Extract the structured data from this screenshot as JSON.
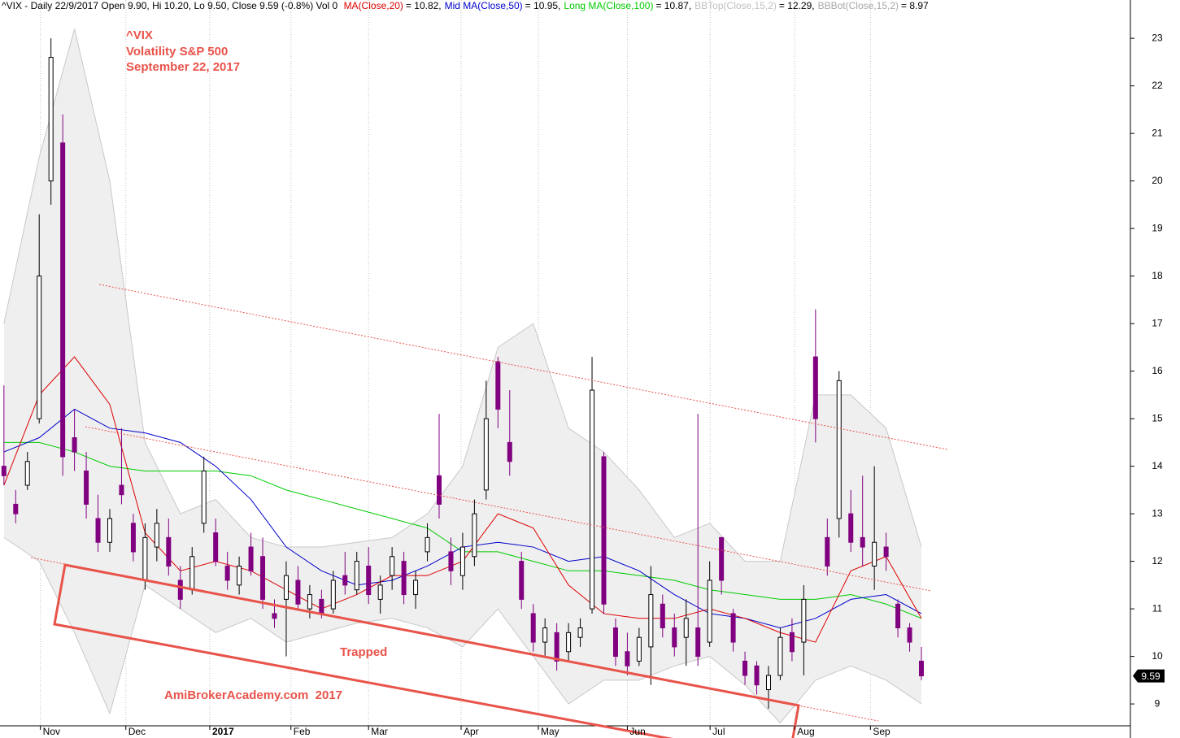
{
  "chart_data": {
    "type": "candlestick",
    "header": {
      "prefix": "^VIX - Daily 22/9/2017 Open 9.90, Hi 10.20, Lo 9.50, Close 9.59 (-0.8%) Vol 0",
      "line_values": [
        "= 10.82,",
        "= 10.95,",
        "= 10.87,",
        "= 12.29,",
        "= 8.97"
      ]
    },
    "title_lines": [
      "^VIX",
      "Volatility S&P 500",
      "September 22, 2017"
    ],
    "annotations": [
      "Trapped",
      "AmiBrokerAcademy.com  2017"
    ],
    "up_color": "#ffffff",
    "down_color": "#800080",
    "grid": true,
    "x": [
      0,
      3,
      6,
      9,
      12,
      15,
      18,
      21,
      24,
      27,
      30,
      33,
      36,
      39,
      42,
      45,
      48,
      51,
      54,
      57,
      60,
      63,
      66,
      69,
      72,
      75,
      78,
      81,
      84,
      87,
      90,
      93,
      96,
      99,
      102,
      105,
      108,
      111,
      114,
      117,
      120,
      123,
      126,
      129,
      132,
      135,
      138,
      141,
      144,
      147,
      150,
      153,
      156,
      159,
      162,
      165,
      168,
      171,
      174,
      177,
      180,
      183,
      186,
      189,
      192,
      195,
      198,
      201,
      204,
      207,
      210,
      213,
      216,
      219,
      222,
      225,
      228,
      231,
      234
    ],
    "open": [
      14.0,
      13.2,
      13.6,
      15.0,
      20.0,
      20.8,
      14.6,
      13.9,
      12.9,
      12.4,
      13.6,
      12.8,
      11.6,
      12.3,
      12.5,
      11.6,
      11.4,
      12.8,
      12.6,
      11.9,
      11.5,
      12.3,
      12.1,
      10.9,
      11.2,
      11.6,
      11.0,
      11.2,
      11.0,
      11.7,
      11.4,
      11.9,
      11.2,
      11.7,
      12.0,
      11.3,
      12.2,
      13.8,
      12.2,
      11.7,
      12.1,
      13.5,
      16.2,
      14.5,
      12.0,
      10.9,
      10.3,
      10.5,
      10.1,
      10.4,
      11.0,
      14.2,
      10.6,
      10.1,
      9.9,
      10.2,
      11.1,
      10.6,
      10.4,
      10.6,
      10.3,
      12.5,
      10.9,
      9.9,
      9.8,
      9.3,
      9.6,
      10.5,
      10.3,
      16.3,
      12.5,
      12.9,
      13.0,
      12.5,
      11.9,
      12.3,
      11.1,
      10.6,
      9.9
    ],
    "high": [
      15.7,
      13.5,
      14.3,
      19.3,
      23.0,
      21.4,
      15.2,
      14.3,
      13.4,
      13.1,
      14.8,
      13.0,
      12.8,
      13.1,
      12.9,
      11.9,
      12.3,
      14.2,
      12.9,
      12.2,
      12.1,
      12.6,
      12.5,
      11.2,
      12.0,
      11.9,
      11.5,
      11.4,
      11.8,
      12.2,
      12.2,
      12.3,
      11.7,
      12.3,
      12.2,
      11.8,
      12.8,
      15.1,
      12.5,
      12.6,
      13.3,
      15.8,
      16.3,
      15.6,
      12.2,
      11.1,
      10.8,
      10.7,
      10.7,
      10.8,
      16.3,
      14.3,
      10.8,
      10.5,
      10.6,
      11.9,
      11.3,
      10.9,
      11.2,
      15.1,
      12.0,
      12.5,
      11.0,
      10.1,
      9.9,
      9.8,
      10.6,
      10.8,
      11.5,
      17.3,
      12.9,
      16.0,
      13.5,
      13.8,
      14.0,
      12.6,
      11.2,
      10.7,
      10.2
    ],
    "low": [
      13.6,
      12.8,
      13.5,
      14.9,
      19.5,
      13.8,
      13.9,
      12.9,
      12.2,
      12.2,
      13.2,
      12.0,
      11.4,
      12.0,
      11.7,
      11.0,
      11.3,
      12.6,
      11.9,
      11.4,
      11.3,
      11.7,
      11.0,
      10.6,
      10.0,
      11.0,
      10.8,
      10.8,
      10.9,
      11.3,
      11.3,
      11.1,
      10.9,
      11.4,
      11.1,
      11.0,
      12.0,
      12.9,
      11.5,
      11.4,
      11.9,
      13.3,
      14.8,
      13.8,
      11.0,
      10.1,
      10.0,
      9.7,
      9.9,
      10.2,
      10.9,
      10.9,
      9.8,
      9.6,
      9.8,
      9.4,
      10.4,
      10.0,
      9.8,
      9.8,
      10.2,
      11.3,
      10.1,
      9.4,
      9.2,
      8.9,
      9.5,
      9.9,
      9.6,
      14.5,
      11.7,
      12.5,
      12.2,
      11.9,
      11.4,
      11.8,
      10.4,
      10.1,
      9.5
    ],
    "close": [
      13.8,
      13.0,
      14.1,
      18.0,
      22.6,
      14.2,
      14.3,
      13.2,
      12.4,
      12.9,
      13.4,
      12.2,
      12.5,
      12.8,
      11.9,
      11.2,
      12.1,
      13.9,
      12.0,
      11.6,
      11.9,
      11.8,
      11.2,
      10.8,
      11.7,
      11.1,
      11.3,
      10.9,
      11.6,
      11.5,
      12.0,
      11.3,
      11.5,
      12.1,
      11.3,
      11.6,
      12.5,
      13.2,
      11.8,
      12.3,
      13.0,
      15.0,
      15.2,
      14.1,
      11.2,
      10.3,
      10.6,
      9.9,
      10.5,
      10.6,
      15.6,
      11.1,
      10.0,
      9.8,
      10.4,
      11.3,
      10.6,
      10.2,
      10.8,
      10.0,
      11.6,
      11.6,
      10.3,
      9.6,
      9.4,
      9.6,
      10.4,
      10.1,
      11.2,
      15.0,
      11.9,
      15.8,
      12.4,
      12.3,
      12.4,
      12.1,
      10.6,
      10.3,
      9.59
    ],
    "lines": [
      {
        "name": "BBTop(Close,15,2)",
        "color": "#c8c8c8",
        "x": [
          0,
          9,
          18,
          27,
          36,
          45,
          54,
          63,
          72,
          81,
          90,
          99,
          108,
          117,
          126,
          135,
          144,
          153,
          162,
          171,
          180,
          189,
          198,
          207,
          216,
          225,
          234
        ],
        "values": [
          17.0,
          20.5,
          23.2,
          20.0,
          14.5,
          13.0,
          13.3,
          12.5,
          12.3,
          12.3,
          12.4,
          12.5,
          13.0,
          14.0,
          16.5,
          17.0,
          14.8,
          14.3,
          13.5,
          12.5,
          12.8,
          12.0,
          12.0,
          15.5,
          15.5,
          14.8,
          12.3
        ]
      },
      {
        "name": "BBBot(Close,15,2)",
        "color": "#c8c8c8",
        "x": [
          0,
          9,
          18,
          27,
          36,
          45,
          54,
          63,
          72,
          81,
          90,
          99,
          108,
          117,
          126,
          135,
          144,
          153,
          162,
          171,
          180,
          189,
          198,
          207,
          216,
          225,
          234
        ],
        "values": [
          12.5,
          12.0,
          10.5,
          8.8,
          11.5,
          11.0,
          10.5,
          10.8,
          10.3,
          10.5,
          10.7,
          10.8,
          10.6,
          10.2,
          11.0,
          10.0,
          9.0,
          9.5,
          9.5,
          9.8,
          10.0,
          9.4,
          8.6,
          9.5,
          9.8,
          9.5,
          9.0
        ]
      },
      {
        "name": "Long MA(Close,100)",
        "color": "#00cc00",
        "x": [
          0,
          9,
          18,
          27,
          36,
          45,
          54,
          63,
          72,
          81,
          90,
          99,
          108,
          117,
          126,
          135,
          144,
          153,
          162,
          171,
          180,
          189,
          198,
          207,
          216,
          225,
          234
        ],
        "values": [
          14.5,
          14.5,
          14.3,
          14.0,
          13.9,
          13.9,
          13.9,
          13.8,
          13.5,
          13.3,
          13.1,
          12.9,
          12.7,
          12.2,
          12.2,
          12.0,
          11.8,
          11.8,
          11.7,
          11.6,
          11.4,
          11.3,
          11.2,
          11.2,
          11.3,
          11.1,
          10.8
        ]
      },
      {
        "name": "Mid MA(Close,50)",
        "color": "#0000cc",
        "x": [
          0,
          9,
          18,
          27,
          36,
          45,
          54,
          63,
          72,
          81,
          90,
          99,
          108,
          117,
          126,
          135,
          144,
          153,
          162,
          171,
          180,
          189,
          198,
          207,
          216,
          225,
          234
        ],
        "values": [
          14.3,
          14.6,
          15.2,
          14.8,
          14.7,
          14.5,
          14.0,
          13.3,
          12.3,
          11.8,
          11.5,
          11.6,
          11.9,
          12.3,
          12.4,
          12.3,
          12.0,
          12.1,
          11.8,
          11.3,
          10.9,
          10.8,
          10.6,
          10.8,
          11.2,
          11.3,
          10.9
        ]
      },
      {
        "name": "MA(Close,20)",
        "color": "#dd0000",
        "x": [
          0,
          9,
          18,
          27,
          36,
          45,
          54,
          63,
          72,
          81,
          90,
          99,
          108,
          117,
          126,
          135,
          144,
          153,
          162,
          171,
          180,
          189,
          198,
          207,
          216,
          225,
          234
        ],
        "values": [
          13.6,
          15.5,
          16.3,
          15.3,
          12.6,
          11.8,
          12.0,
          11.8,
          11.4,
          11.0,
          11.3,
          11.7,
          11.7,
          12.0,
          13.0,
          12.7,
          11.5,
          10.9,
          10.8,
          10.8,
          11.0,
          10.8,
          10.5,
          10.3,
          11.8,
          12.1,
          10.8
        ]
      }
    ],
    "header_order": [
      4,
      3,
      2,
      0,
      1
    ],
    "xlim": [
      -1,
      287.3
    ],
    "ylim": [
      8.54,
      23.55
    ],
    "yticks": [
      9,
      10,
      11,
      12,
      13,
      14,
      15,
      16,
      17,
      18,
      19,
      20,
      21,
      22,
      23
    ],
    "xticks": [
      {
        "value": 9.3,
        "label": "Nov"
      },
      {
        "value": 31.1,
        "label": "Dec"
      },
      {
        "value": 52.5,
        "label": "2017"
      },
      {
        "value": 73.2,
        "label": "Feb"
      },
      {
        "value": 93,
        "label": "Mar"
      },
      {
        "value": 116.6,
        "label": "Apr"
      },
      {
        "value": 136.3,
        "label": "May"
      },
      {
        "value": 159,
        "label": "Jun"
      },
      {
        "value": 180.1,
        "label": "Jul"
      },
      {
        "value": 201.7,
        "label": "Aug"
      },
      {
        "value": 221,
        "label": "Sep"
      }
    ]
  }
}
